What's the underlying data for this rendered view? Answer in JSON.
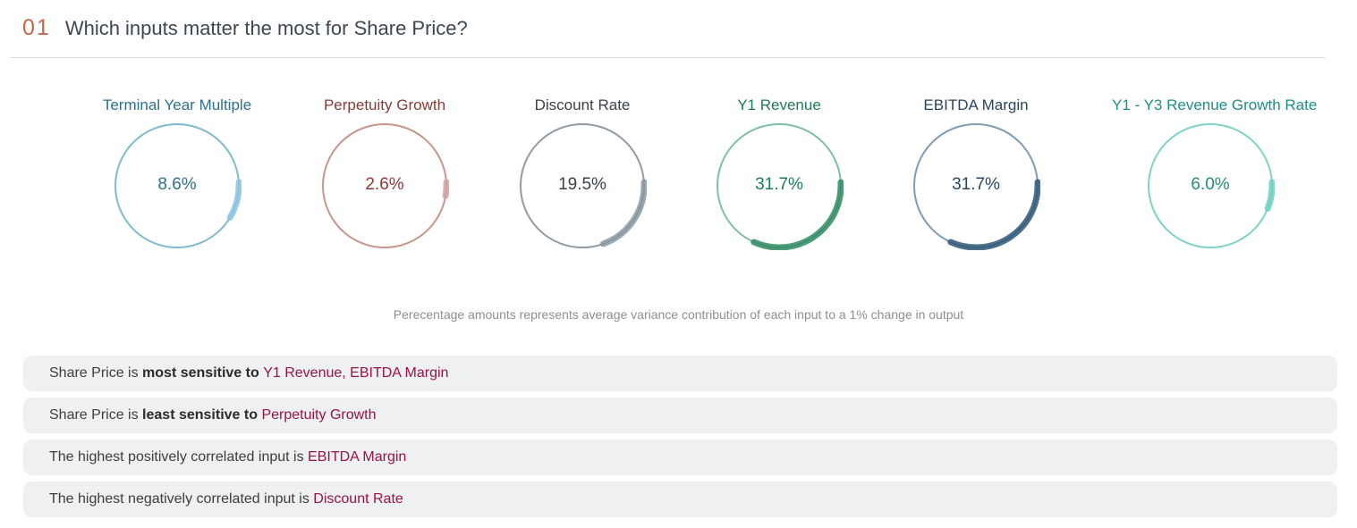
{
  "header": {
    "number": "01",
    "title": "Which inputs matter the most for Share Price?"
  },
  "chart_data": {
    "type": "gauge",
    "unit": "%",
    "items": [
      {
        "label": "Terminal Year Multiple",
        "value": 8.6,
        "display": "8.6%",
        "color": "#2f6f8f",
        "ring_color": "#7fbccb",
        "arc_color": "#8bc4dd"
      },
      {
        "label": "Perpetuity Growth",
        "value": 2.6,
        "display": "2.6%",
        "color": "#8b3a36",
        "ring_color": "#c9948d",
        "arc_color": "#d4a19c"
      },
      {
        "label": "Discount Rate",
        "value": 19.5,
        "display": "19.5%",
        "color": "#3a4148",
        "ring_color": "#8f9ba5",
        "arc_color": "#8a96a0"
      },
      {
        "label": "Y1 Revenue",
        "value": 31.7,
        "display": "31.7%",
        "color": "#1e7a55",
        "ring_color": "#7fbfa4",
        "arc_color": "#2f8a63"
      },
      {
        "label": "EBITDA Margin",
        "value": 31.7,
        "display": "31.7%",
        "color": "#2a4560",
        "ring_color": "#7f9bb0",
        "arc_color": "#2d5775"
      },
      {
        "label": "Y1 - Y3 Revenue Growth Rate",
        "value": 6.0,
        "display": "6.0%",
        "color": "#1f8f7f",
        "ring_color": "#7fd3c6",
        "arc_color": "#6fd0c2"
      }
    ]
  },
  "footnote": "Perecentage amounts represents average variance contribution of each input to a 1% change in output",
  "insights": [
    {
      "prefix": "Share Price is ",
      "strong": "most sensitive to",
      "highlight": "Y1 Revenue, EBITDA Margin"
    },
    {
      "prefix": "Share Price is ",
      "strong": "least sensitive to",
      "highlight": "Perpetuity Growth"
    },
    {
      "prefix": "The highest positively correlated input is",
      "strong": "",
      "highlight": "EBITDA Margin"
    },
    {
      "prefix": "The highest negatively correlated input is",
      "strong": "",
      "highlight": "Discount Rate"
    }
  ]
}
